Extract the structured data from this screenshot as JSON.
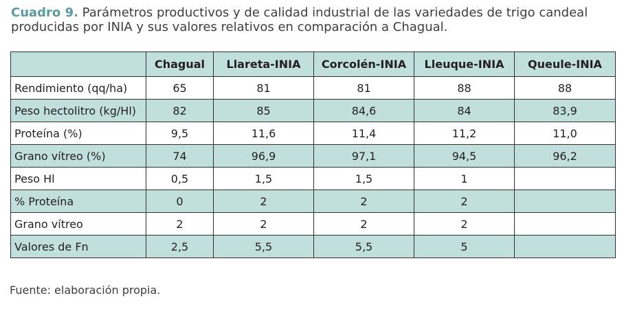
{
  "caption": {
    "label": "Cuadro 9.",
    "text": "Parámetros productivos y de calidad industrial de las variedades de trigo candeal producidas por INIA y sus valores relativos en comparación a Chagual."
  },
  "table": {
    "headers": [
      "",
      "Chagual",
      "Llareta-INIA",
      "Corcolén-INIA",
      "Lleuque-INIA",
      "Queule-INIA"
    ],
    "rows": [
      {
        "label": "Rendimiento (qq/ha)",
        "values": [
          "65",
          "81",
          "81",
          "88",
          "88"
        ]
      },
      {
        "label": "Peso hectolitro (kg/Hl)",
        "values": [
          "82",
          "85",
          "84,6",
          "84",
          "83,9"
        ]
      },
      {
        "label": "Proteína (%)",
        "values": [
          "9,5",
          "11,6",
          "11,4",
          "11,2",
          "11,0"
        ]
      },
      {
        "label": "Grano vítreo (%)",
        "values": [
          "74",
          "96,9",
          "97,1",
          "94,5",
          "96,2"
        ]
      },
      {
        "label": "Peso Hl",
        "values": [
          "0,5",
          "1,5",
          "1,5",
          "1",
          ""
        ]
      },
      {
        "label": "% Proteína",
        "values": [
          "0",
          "2",
          "2",
          "2",
          ""
        ]
      },
      {
        "label": "Grano vítreo",
        "values": [
          "2",
          "2",
          "2",
          "2",
          ""
        ]
      },
      {
        "label": "Valores de Fn",
        "values": [
          "2,5",
          "5,5",
          "5,5",
          "5",
          ""
        ]
      }
    ]
  },
  "source": "Fuente: elaboración propia.",
  "colors": {
    "accent": "#5a9aa0",
    "row_fill": "#c1dfdd",
    "border": "#2f2f2f"
  }
}
